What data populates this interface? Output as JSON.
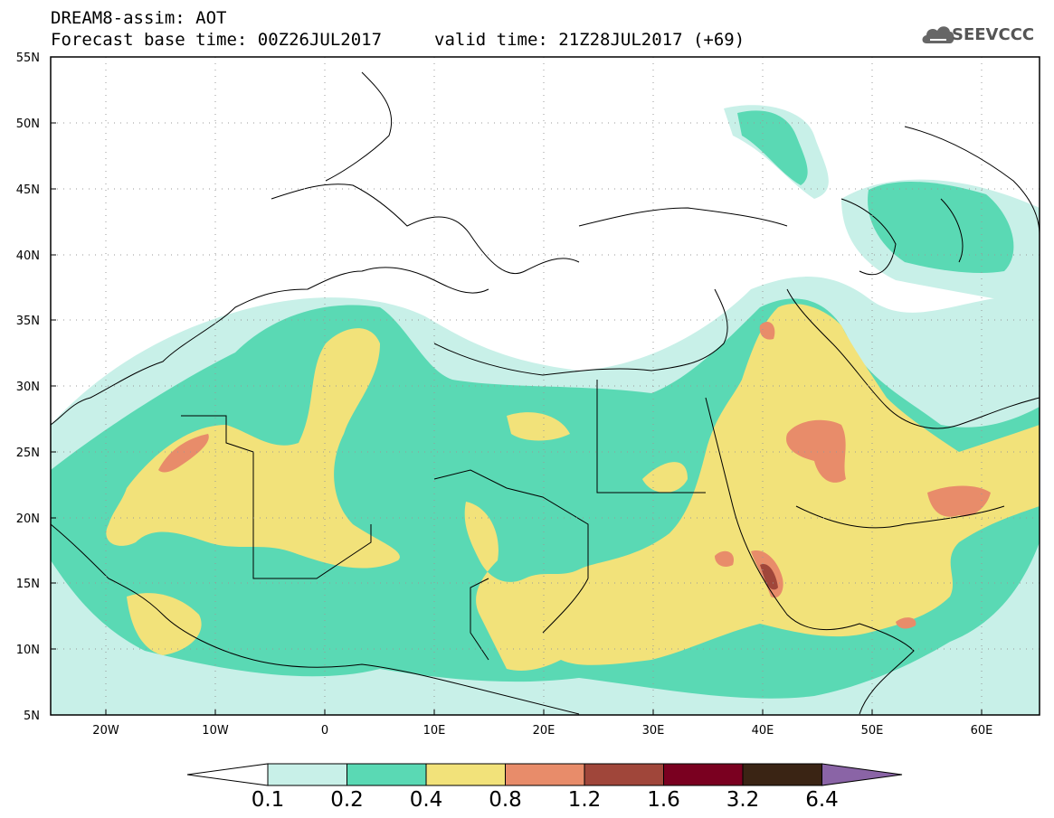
{
  "header": {
    "line1": "DREAM8-assim: AOT",
    "line2": "Forecast base time: 00Z26JUL2017",
    "valid": "valid time: 21Z28JUL2017 (+69)",
    "logo_text": "SEEVCCC",
    "logo_icon": "cloud-icon"
  },
  "map": {
    "projection": "lat-lon",
    "lon_range": [
      -25,
      65
    ],
    "lat_range": [
      5,
      55
    ],
    "lat_labels": [
      "55N",
      "50N",
      "45N",
      "40N",
      "35N",
      "30N",
      "25N",
      "20N",
      "15N",
      "10N",
      "5N"
    ],
    "lon_labels": [
      "20W",
      "10W",
      "0",
      "10E",
      "20E",
      "30E",
      "40E",
      "50E",
      "60E"
    ],
    "gridlines": "dotted",
    "ocean_color": "#ffffff"
  },
  "colorbar": {
    "labels": [
      "0.1",
      "0.2",
      "0.4",
      "0.8",
      "1.2",
      "1.6",
      "3.2",
      "6.4"
    ],
    "colors": [
      "#ffffff",
      "#c8f0e8",
      "#5ad9b4",
      "#f2e27a",
      "#e88c6a",
      "#a0463a",
      "#7a0020",
      "#3a2414",
      "#8a64a6"
    ],
    "extend": "both"
  }
}
